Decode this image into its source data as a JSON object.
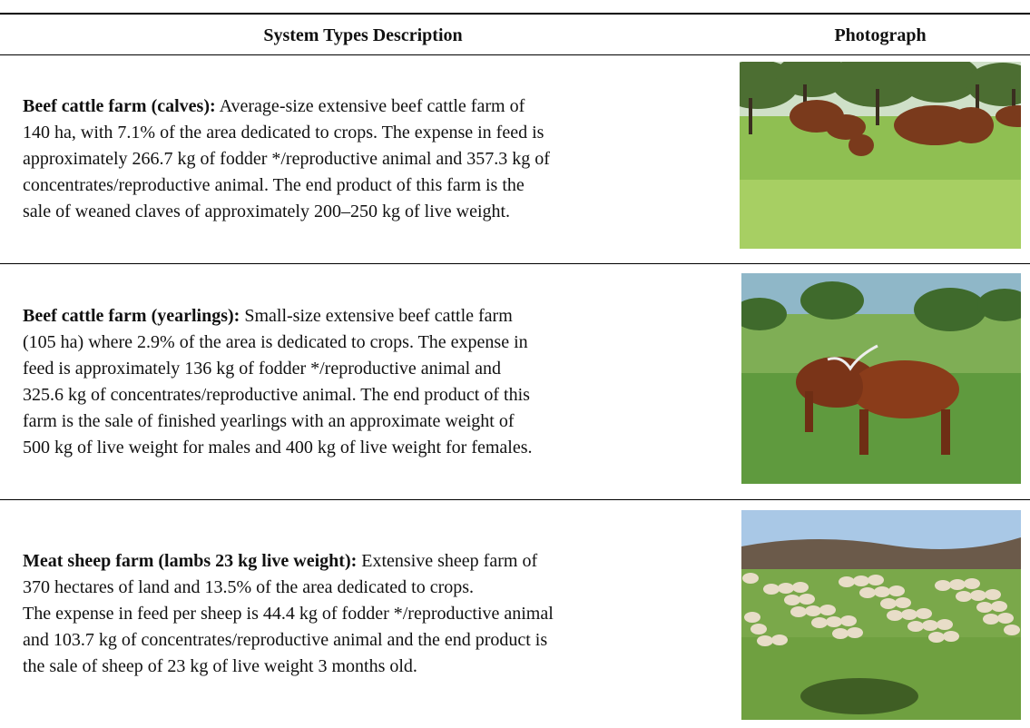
{
  "table": {
    "header": [
      "System Types Description",
      "Photograph"
    ],
    "rows": [
      {
        "label": "Beef cattle farm (calves):",
        "lines": [
          "Average-size extensive beef cattle farm of",
          "140 ha, with 7.1% of the area dedicated to crops. The expense in feed is",
          "approximately 266.7 kg of fodder */reproductive animal and 357.3 kg of",
          "concentrates/reproductive animal. The end product of this farm is the",
          "sale of weaned claves of approximately 200–250 kg of live weight."
        ]
      },
      {
        "label": "Beef cattle farm (yearlings):",
        "lines": [
          "Small-size extensive beef cattle farm",
          "(105 ha) where 2.9% of the area is dedicated to crops. The expense in",
          "feed is approximately 136 kg of fodder */reproductive animal and",
          "325.6 kg of concentrates/reproductive animal. The end product of this",
          "farm is the sale of finished yearlings with an approximate weight of",
          "500 kg of live weight for males and 400 kg of live weight for females."
        ]
      },
      {
        "label": "Meat sheep farm (lambs 23 kg live weight):",
        "lines": [
          "Extensive sheep farm of",
          "370 hectares of land and 13.5% of the area dedicated to crops.",
          "The expense in feed per sheep is 44.4 kg of fodder */reproductive animal",
          "and 103.7 kg of concentrates/reproductive animal and the end product is",
          "the sale of sheep of 23 kg of live weight 3 months old."
        ]
      }
    ]
  }
}
